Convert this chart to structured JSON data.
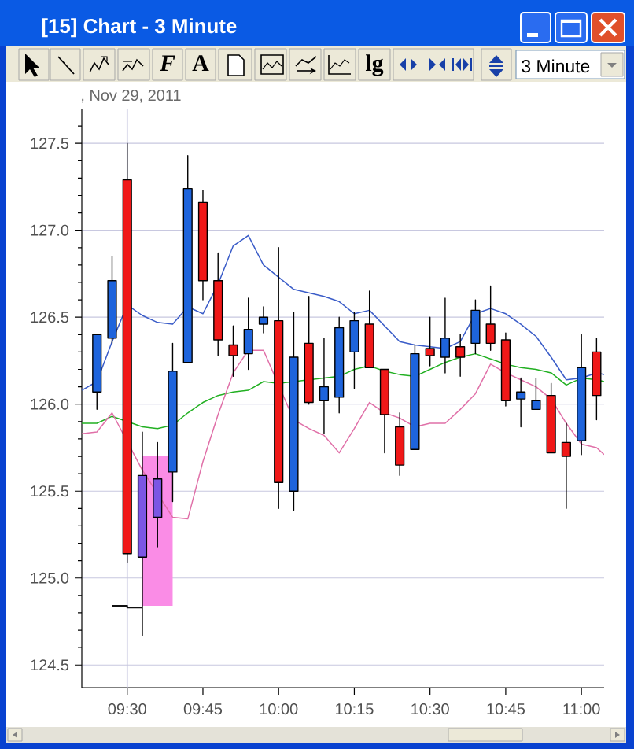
{
  "chart_data": {
    "type": "candlestick",
    "title": "[15] Chart - 3 Minute",
    "subtitle": ", Nov 29, 2011",
    "annotations": [
      "F",
      "A",
      "lg",
      "3 Minute"
    ],
    "x": [
      9.4,
      9.45,
      9.5,
      9.55,
      9.6,
      9.65,
      9.7,
      9.75,
      9.8,
      9.85,
      9.9,
      9.95,
      10.0,
      10.05,
      10.1,
      10.15,
      10.2,
      10.25,
      10.3,
      10.35,
      10.4,
      10.45,
      10.5,
      10.55,
      10.6,
      10.65,
      10.7,
      10.75,
      10.8,
      10.85,
      10.9,
      10.95,
      11.0,
      11.05
    ],
    "ohlc": [
      [
        126.07,
        126.4,
        125.97,
        126.4
      ],
      [
        126.38,
        126.85,
        126.35,
        126.71
      ],
      [
        127.29,
        127.5,
        125.09,
        125.14
      ],
      [
        125.12,
        125.84,
        124.67,
        125.59
      ],
      [
        125.35,
        125.78,
        125.18,
        125.57
      ],
      [
        125.61,
        126.35,
        125.44,
        126.19
      ],
      [
        126.24,
        127.43,
        126.24,
        127.24
      ],
      [
        127.16,
        127.23,
        126.6,
        126.71
      ],
      [
        126.71,
        126.87,
        126.28,
        126.37
      ],
      [
        126.34,
        126.45,
        126.16,
        126.28
      ],
      [
        126.29,
        126.61,
        126.2,
        126.43
      ],
      [
        126.46,
        126.56,
        126.41,
        126.5
      ],
      [
        126.48,
        126.9,
        125.4,
        125.55
      ],
      [
        125.5,
        126.53,
        125.39,
        126.27
      ],
      [
        126.35,
        126.62,
        126.0,
        126.01
      ],
      [
        126.02,
        126.38,
        125.83,
        126.1
      ],
      [
        126.04,
        126.5,
        125.95,
        126.44
      ],
      [
        126.3,
        126.53,
        126.09,
        126.48
      ],
      [
        126.46,
        126.65,
        126.21,
        126.21
      ],
      [
        126.2,
        126.2,
        125.72,
        125.94
      ],
      [
        125.87,
        125.95,
        125.59,
        125.65
      ],
      [
        125.74,
        126.34,
        125.74,
        126.29
      ],
      [
        126.32,
        126.5,
        126.22,
        126.28
      ],
      [
        126.27,
        126.61,
        126.18,
        126.38
      ],
      [
        126.33,
        126.4,
        126.16,
        126.27
      ],
      [
        126.35,
        126.6,
        126.29,
        126.54
      ],
      [
        126.46,
        126.68,
        126.31,
        126.35
      ],
      [
        126.37,
        126.41,
        125.99,
        126.02
      ],
      [
        126.03,
        126.15,
        125.87,
        126.07
      ],
      [
        125.97,
        126.15,
        125.97,
        126.02
      ],
      [
        126.05,
        126.12,
        125.72,
        125.72
      ],
      [
        125.78,
        125.89,
        125.4,
        125.7
      ],
      [
        125.79,
        126.4,
        125.71,
        126.21
      ],
      [
        126.3,
        126.38,
        125.91,
        126.05
      ]
    ],
    "colors": [
      "#1e64dc",
      "#1e64dc",
      "#f01818",
      "#7b56e4",
      "#7b56e4",
      "#1e64dc",
      "#1e64dc",
      "#f01818",
      "#f01818",
      "#f01818",
      "#1e64dc",
      "#1e64dc",
      "#f01818",
      "#1e64dc",
      "#f01818",
      "#1e64dc",
      "#1e64dc",
      "#1e64dc",
      "#f01818",
      "#f01818",
      "#f01818",
      "#1e64dc",
      "#f01818",
      "#1e64dc",
      "#f01818",
      "#1e64dc",
      "#f01818",
      "#f01818",
      "#1e64dc",
      "#1e64dc",
      "#f01818",
      "#f01818",
      "#1e64dc",
      "#f01818"
    ],
    "series": [
      {
        "type": "bar",
        "color": "#fa8ce6",
        "x": [
          9.6
        ],
        "base": [
          124.84
        ],
        "values": [
          0.86
        ]
      },
      {
        "type": "step",
        "color": "#111111",
        "x": [
          9.45,
          9.5,
          9.55
        ],
        "values": [
          124.84,
          124.83,
          124.83
        ]
      },
      {
        "type": "line",
        "color": "#3a5cc8",
        "x": [
          9.35,
          9.4,
          9.45,
          9.5,
          9.55,
          9.6,
          9.65,
          9.7,
          9.75,
          9.8,
          9.85,
          9.9,
          9.95,
          10.0,
          10.05,
          10.1,
          10.15,
          10.2,
          10.25,
          10.3,
          10.35,
          10.4,
          10.45,
          10.5,
          10.55,
          10.6,
          10.65,
          10.7,
          10.75,
          10.8,
          10.85,
          10.9,
          10.95,
          11.0,
          11.05,
          11.075
        ],
        "values": [
          126.08,
          126.13,
          126.36,
          126.57,
          126.51,
          126.47,
          126.46,
          126.56,
          126.52,
          126.69,
          126.91,
          126.97,
          126.8,
          126.73,
          126.66,
          126.64,
          126.62,
          126.59,
          126.52,
          126.54,
          126.45,
          126.36,
          126.34,
          126.33,
          126.32,
          126.36,
          126.52,
          126.55,
          126.52,
          126.46,
          126.39,
          126.27,
          126.14,
          126.15,
          126.18,
          126.17
        ]
      },
      {
        "type": "line",
        "color": "#22b022",
        "x": [
          9.35,
          9.4,
          9.45,
          9.5,
          9.55,
          9.6,
          9.65,
          9.7,
          9.75,
          9.8,
          9.85,
          9.9,
          9.95,
          10.0,
          10.05,
          10.1,
          10.15,
          10.2,
          10.25,
          10.3,
          10.35,
          10.4,
          10.45,
          10.5,
          10.55,
          10.6,
          10.65,
          10.7,
          10.75,
          10.8,
          10.85,
          10.9,
          10.95,
          11.0,
          11.05,
          11.075
        ],
        "values": [
          125.89,
          125.89,
          125.93,
          125.9,
          125.87,
          125.86,
          125.88,
          125.95,
          126.01,
          126.05,
          126.07,
          126.08,
          126.13,
          126.12,
          126.13,
          126.14,
          126.15,
          126.16,
          126.2,
          126.22,
          126.19,
          126.17,
          126.16,
          126.2,
          126.24,
          126.27,
          126.29,
          126.26,
          126.23,
          126.21,
          126.2,
          126.18,
          126.11,
          126.15,
          126.14,
          126.13
        ]
      },
      {
        "type": "line",
        "color": "#e070a8",
        "x": [
          9.35,
          9.4,
          9.45,
          9.5,
          9.55,
          9.6,
          9.65,
          9.7,
          9.75,
          9.8,
          9.85,
          9.9,
          9.95,
          10.0,
          10.05,
          10.1,
          10.15,
          10.2,
          10.25,
          10.3,
          10.35,
          10.4,
          10.45,
          10.5,
          10.55,
          10.6,
          10.65,
          10.7,
          10.75,
          10.8,
          10.85,
          10.9,
          10.95,
          11.0,
          11.05,
          11.075
        ],
        "values": [
          125.83,
          125.84,
          125.95,
          null,
          125.62,
          null,
          125.35,
          125.34,
          125.67,
          125.94,
          126.18,
          126.31,
          126.31,
          null,
          125.91,
          125.86,
          125.82,
          125.72,
          125.86,
          126.01,
          125.95,
          125.92,
          125.87,
          125.89,
          125.89,
          125.97,
          126.06,
          126.23,
          126.18,
          126.14,
          126.1,
          126.03,
          125.89,
          125.77,
          125.75,
          125.71
        ]
      }
    ],
    "ref_lines": [
      {
        "axis": "x",
        "value": 9.5,
        "color": "#c4c4de"
      }
    ],
    "xlim": [
      9.35,
      11.075
    ],
    "xticks": [
      {
        "value": 9.5,
        "label": "09:30"
      },
      {
        "value": 9.75,
        "label": "09:45"
      },
      {
        "value": 10,
        "label": "10:00"
      },
      {
        "value": 10.25,
        "label": "10:15"
      },
      {
        "value": 10.5,
        "label": "10:30"
      },
      {
        "value": 10.75,
        "label": "10:45"
      },
      {
        "value": 11,
        "label": "11:00"
      }
    ],
    "ylim": [
      124.37,
      127.7
    ],
    "yticks": [
      124.5,
      {
        "value": 124.6,
        "label": null
      },
      {
        "value": 124.7,
        "label": null
      },
      {
        "value": 124.8,
        "label": null
      },
      {
        "value": 124.9,
        "label": null
      },
      {
        "value": 125,
        "label": "125.0"
      },
      {
        "value": 125.1,
        "label": null
      },
      {
        "value": 125.2,
        "label": null
      },
      {
        "value": 125.3,
        "label": null
      },
      {
        "value": 125.4,
        "label": null
      },
      125.5,
      {
        "value": 125.6,
        "label": null
      },
      {
        "value": 125.7,
        "label": null
      },
      {
        "value": 125.8,
        "label": null
      },
      {
        "value": 125.9,
        "label": null
      },
      {
        "value": 126,
        "label": "126.0"
      },
      {
        "value": 126.1,
        "label": null
      },
      {
        "value": 126.2,
        "label": null
      },
      {
        "value": 126.3,
        "label": null
      },
      {
        "value": 126.4,
        "label": null
      },
      126.5,
      {
        "value": 126.6,
        "label": null
      },
      {
        "value": 126.7,
        "label": null
      },
      {
        "value": 126.8,
        "label": null
      },
      {
        "value": 126.9,
        "label": null
      },
      {
        "value": 127,
        "label": "127.0"
      },
      {
        "value": 127.1,
        "label": null
      },
      {
        "value": 127.2,
        "label": null
      },
      {
        "value": 127.3,
        "label": null
      },
      {
        "value": 127.4,
        "label": null
      },
      127.5,
      {
        "value": 127.6,
        "label": null
      }
    ],
    "grid": "y"
  }
}
